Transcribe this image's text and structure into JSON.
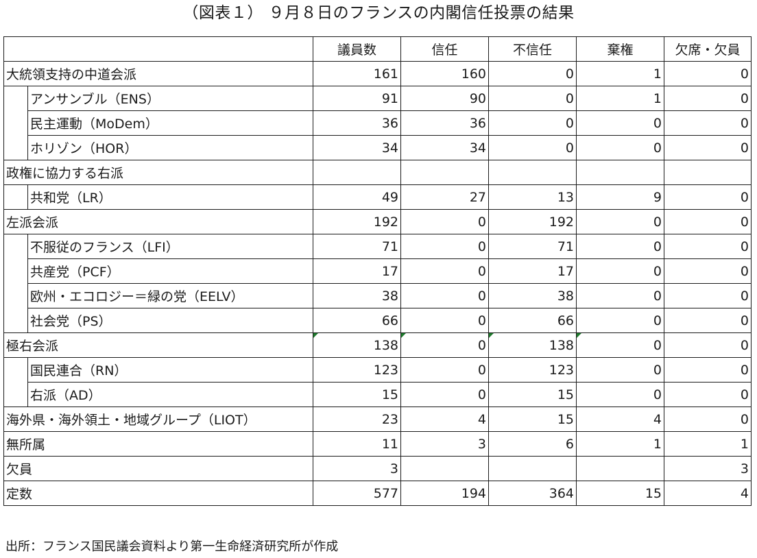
{
  "title": "（図表１） ９月８日のフランスの内閣信任投票の結果",
  "source": "出所：フランス国民議会資料より第一生命経済研究所が作成",
  "chart_data": {
    "type": "table",
    "columns": [
      "議員数",
      "信任",
      "不信任",
      "棄権",
      "欠席・欠員"
    ],
    "rows": [
      {
        "label": "大統領支持の中道会派",
        "sub": false,
        "values": [
          "161",
          "160",
          "0",
          "1",
          "0"
        ]
      },
      {
        "label": "アンサンブル（ENS）",
        "sub": true,
        "values": [
          "91",
          "90",
          "0",
          "1",
          "0"
        ]
      },
      {
        "label": "民主運動（MoDem）",
        "sub": true,
        "values": [
          "36",
          "36",
          "0",
          "0",
          "0"
        ]
      },
      {
        "label": "ホリゾン（HOR）",
        "sub": true,
        "values": [
          "34",
          "34",
          "0",
          "0",
          "0"
        ]
      },
      {
        "label": "政権に協力する右派",
        "sub": false,
        "values": [
          "",
          "",
          "",
          "",
          ""
        ]
      },
      {
        "label": "共和党（LR）",
        "sub": true,
        "values": [
          "49",
          "27",
          "13",
          "9",
          "0"
        ]
      },
      {
        "label": "左派会派",
        "sub": false,
        "values": [
          "192",
          "0",
          "192",
          "0",
          "0"
        ]
      },
      {
        "label": "不服従のフランス（LFI）",
        "sub": true,
        "values": [
          "71",
          "0",
          "71",
          "0",
          "0"
        ]
      },
      {
        "label": "共産党（PCF）",
        "sub": true,
        "values": [
          "17",
          "0",
          "17",
          "0",
          "0"
        ]
      },
      {
        "label": "欧州・エコロジー＝緑の党（EELV）",
        "sub": true,
        "values": [
          "38",
          "0",
          "38",
          "0",
          "0"
        ]
      },
      {
        "label": "社会党（PS）",
        "sub": true,
        "values": [
          "66",
          "0",
          "66",
          "0",
          "0"
        ]
      },
      {
        "label": "極右会派",
        "sub": false,
        "flagged": true,
        "values": [
          "138",
          "0",
          "138",
          "0",
          "0"
        ]
      },
      {
        "label": "国民連合（RN）",
        "sub": true,
        "values": [
          "123",
          "0",
          "123",
          "0",
          "0"
        ]
      },
      {
        "label": "右派（AD）",
        "sub": true,
        "values": [
          "15",
          "0",
          "15",
          "0",
          "0"
        ]
      },
      {
        "label": "海外県・海外領土・地域グループ（LIOT）",
        "sub": false,
        "values": [
          "23",
          "4",
          "15",
          "4",
          "0"
        ]
      },
      {
        "label": "無所属",
        "sub": false,
        "values": [
          "11",
          "3",
          "6",
          "1",
          "1"
        ]
      },
      {
        "label": "欠員",
        "sub": false,
        "values": [
          "3",
          "",
          "",
          "",
          "3"
        ]
      },
      {
        "label": "定数",
        "sub": false,
        "values": [
          "577",
          "194",
          "364",
          "15",
          "4"
        ]
      }
    ]
  }
}
